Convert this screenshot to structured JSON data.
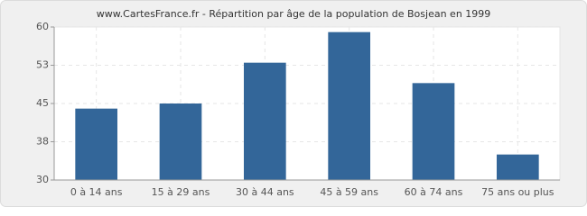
{
  "chart_data": {
    "type": "bar",
    "title": "www.CartesFrance.fr - Répartition par âge de la population de Bosjean en 1999",
    "categories": [
      "0 à 14 ans",
      "15 à 29 ans",
      "30 à 44 ans",
      "45 à 59 ans",
      "60 à 74 ans",
      "75 ans ou plus"
    ],
    "values": [
      44,
      45,
      53,
      59,
      49,
      35
    ],
    "color": "#336699",
    "ylim": [
      30,
      60
    ],
    "yticks": [
      30,
      {
        "value": 37.5,
        "label": "38"
      },
      45,
      {
        "value": 52.5,
        "label": "53"
      },
      60
    ],
    "grid": true
  }
}
